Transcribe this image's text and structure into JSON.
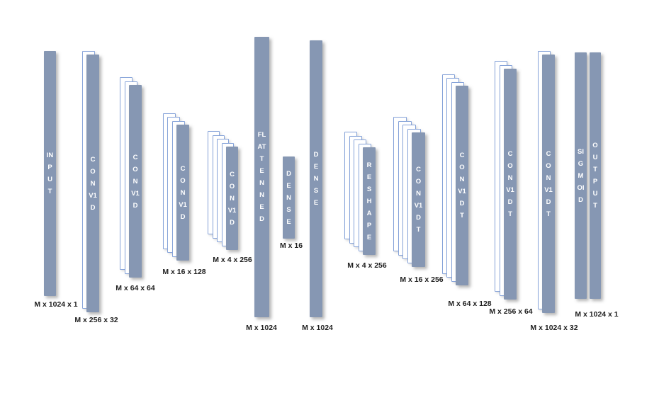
{
  "colors": {
    "background": "#FFFFFF",
    "bar_fill": "#8697B3",
    "bar_text": "#FFFFFF",
    "outline_fill": "#FFFFFF",
    "outline_border": "#86A3D9",
    "dim_text": "#1F1F1F"
  },
  "layers": [
    {
      "name": "INPUT",
      "dims": "M x 1024 x 1"
    },
    {
      "name": "CONV1D",
      "dims": "M x 256 x 32"
    },
    {
      "name": "CONV1D",
      "dims": "M x 64 x 64"
    },
    {
      "name": "CONV1D",
      "dims": "M x 16 x 128"
    },
    {
      "name": "CONV1D",
      "dims": "M x 4 x 256"
    },
    {
      "name": "FLATTENNED",
      "dims": "M x 1024"
    },
    {
      "name": "DENSE",
      "dims": "M x 16"
    },
    {
      "name": "DENSE",
      "dims": "M x 1024"
    },
    {
      "name": "RESHAPE",
      "dims": "M x 4 x 256"
    },
    {
      "name": "CONV1DT",
      "dims": "M x 16 x 256"
    },
    {
      "name": "CONV1DT",
      "dims": "M x 64 x 128"
    },
    {
      "name": "CONV1DT",
      "dims": "M x 256 x 64"
    },
    {
      "name": "CONV1DT",
      "dims": "M x 1024 x 32"
    },
    {
      "name": "SIGMOID",
      "dims": ""
    },
    {
      "name": "OUTPUT",
      "dims": "M x 1024 x 1"
    }
  ]
}
